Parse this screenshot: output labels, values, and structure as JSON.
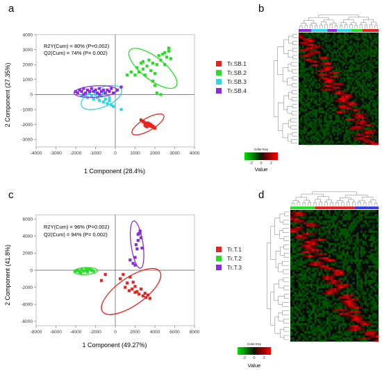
{
  "panels": {
    "a": {
      "letter": "a",
      "stats": [
        "R2Y(Cum) = 80% (P=0.002)",
        "Q2(Cum) = 74% (P= 0.002)"
      ],
      "xlabel": "1 Component (28.4%)",
      "ylabel": "2 Component (27.35%)",
      "xticks": [
        -4000,
        -3000,
        -2000,
        -1000,
        0,
        1000,
        2000,
        3000,
        4000
      ],
      "yticks": [
        4000,
        3000,
        2000,
        1000,
        0,
        -1000,
        -2000,
        -3000
      ],
      "legend": [
        {
          "label": "Tr.SB.1",
          "color": "#e8231e"
        },
        {
          "label": "Tr.SB.2",
          "color": "#23e023"
        },
        {
          "label": "Tr.SB.3",
          "color": "#28d8e8"
        },
        {
          "label": "Tr.SB.4",
          "color": "#8a2be2"
        }
      ]
    },
    "b": {
      "letter": "b",
      "color_key_title": "Color Key",
      "key_ticks": [
        "-2",
        "0",
        "2"
      ],
      "key_label": "Value"
    },
    "c": {
      "letter": "c",
      "stats": [
        "R2Y(Cum) = 96% (P=0.002)",
        "Q2(Cum) = 94% (P= 0.002)"
      ],
      "xlabel": "1 Component (49.27%)",
      "ylabel": "2 Component (41.8%)",
      "xticks": [
        -8000,
        -6000,
        -4000,
        -2000,
        0,
        2000,
        4000,
        6000,
        8000
      ],
      "yticks": [
        6000,
        4000,
        2000,
        0,
        -2000,
        -4000,
        -6000
      ],
      "legend": [
        {
          "label": "Tr.T.1",
          "color": "#e8231e"
        },
        {
          "label": "Tr.T.2",
          "color": "#23e023"
        },
        {
          "label": "Tr.T.3",
          "color": "#8a2be2"
        }
      ]
    },
    "d": {
      "letter": "d",
      "color_key_title": "Color Key",
      "key_ticks": [
        "-2",
        "0",
        "2"
      ],
      "key_label": "Value"
    }
  },
  "chart_data": [
    {
      "type": "scatter",
      "title": "",
      "xlabel": "1 Component (28.4%)",
      "ylabel": "2 Component (27.35%)",
      "xlim": [
        -4000,
        4000
      ],
      "ylim": [
        -3500,
        4000
      ],
      "grid": false,
      "legend_position": "right",
      "series": [
        {
          "name": "Tr.SB.1",
          "color": "#e8231e",
          "ellipse": {
            "cx": 1650,
            "cy": -2000,
            "rx": 1050,
            "ry": 360,
            "angle_deg": -30
          },
          "points": [
            [
              1300,
              -1700
            ],
            [
              1400,
              -1800
            ],
            [
              1500,
              -1900
            ],
            [
              1550,
              -1950
            ],
            [
              1600,
              -2000
            ],
            [
              1650,
              -1900
            ],
            [
              1700,
              -2050
            ],
            [
              1750,
              -2100
            ],
            [
              1800,
              -2000
            ],
            [
              1850,
              -2150
            ],
            [
              1900,
              -2100
            ],
            [
              1950,
              -2200
            ],
            [
              1500,
              -2050
            ],
            [
              1600,
              -2150
            ],
            [
              1700,
              -1950
            ],
            [
              1450,
              -1850
            ],
            [
              2000,
              -2250
            ],
            [
              1550,
              -2100
            ]
          ]
        },
        {
          "name": "Tr.SB.2",
          "color": "#23e023",
          "ellipse": {
            "cx": 1900,
            "cy": 1750,
            "rx": 1700,
            "ry": 650,
            "angle_deg": 38
          },
          "points": [
            [
              600,
              1300
            ],
            [
              800,
              1500
            ],
            [
              1000,
              1300
            ],
            [
              1100,
              1800
            ],
            [
              1200,
              1500
            ],
            [
              1300,
              2100
            ],
            [
              1400,
              1700
            ],
            [
              1500,
              1300
            ],
            [
              1600,
              1900
            ],
            [
              1700,
              2300
            ],
            [
              1800,
              1600
            ],
            [
              1900,
              2100
            ],
            [
              2000,
              1400
            ],
            [
              2100,
              2000
            ],
            [
              2200,
              2600
            ],
            [
              2300,
              2300
            ],
            [
              2400,
              2700
            ],
            [
              2500,
              2000
            ],
            [
              2600,
              2500
            ],
            [
              2700,
              2900
            ],
            [
              2800,
              2400
            ],
            [
              2700,
              3100
            ],
            [
              2500,
              2800
            ],
            [
              1900,
              900
            ],
            [
              2000,
              600
            ],
            [
              2100,
              100
            ],
            [
              2300,
              0
            ],
            [
              1400,
              2200
            ]
          ]
        },
        {
          "name": "Tr.SB.3",
          "color": "#28d8e8",
          "ellipse": {
            "cx": -700,
            "cy": -200,
            "rx": 1250,
            "ry": 560,
            "angle_deg": -22
          },
          "points": [
            [
              -1700,
              -100
            ],
            [
              -1500,
              0
            ],
            [
              -1400,
              -200
            ],
            [
              -1300,
              100
            ],
            [
              -1200,
              -100
            ],
            [
              -1100,
              -300
            ],
            [
              -1000,
              0
            ],
            [
              -900,
              -200
            ],
            [
              -800,
              -400
            ],
            [
              -700,
              -100
            ],
            [
              -600,
              -500
            ],
            [
              -500,
              -300
            ],
            [
              -400,
              -600
            ],
            [
              -300,
              -400
            ],
            [
              -200,
              -700
            ],
            [
              -100,
              -800
            ],
            [
              300,
              -1000
            ],
            [
              -1000,
              200
            ],
            [
              -600,
              100
            ],
            [
              -300,
              -200
            ]
          ]
        },
        {
          "name": "Tr.SB.4",
          "color": "#8a2be2",
          "ellipse": {
            "cx": -1000,
            "cy": 200,
            "rx": 1250,
            "ry": 330,
            "angle_deg": -4
          },
          "points": [
            [
              -2000,
              200
            ],
            [
              -1900,
              100
            ],
            [
              -1800,
              300
            ],
            [
              -1700,
              200
            ],
            [
              -1600,
              400
            ],
            [
              -1500,
              100
            ],
            [
              -1400,
              300
            ],
            [
              -1300,
              200
            ],
            [
              -1200,
              400
            ],
            [
              -1100,
              200
            ],
            [
              -1000,
              300
            ],
            [
              -900,
              100
            ],
            [
              -800,
              400
            ],
            [
              -700,
              200
            ],
            [
              -600,
              300
            ],
            [
              -500,
              100
            ],
            [
              -400,
              300
            ],
            [
              -300,
              200
            ],
            [
              -200,
              400
            ],
            [
              -100,
              100
            ],
            [
              100,
              300
            ],
            [
              300,
              500
            ],
            [
              -1600,
              0
            ],
            [
              -800,
              0
            ]
          ]
        }
      ]
    },
    {
      "type": "heatmap",
      "title": "",
      "color_key": {
        "title": "Color Key",
        "label": "Value",
        "range": [
          -2,
          2
        ],
        "colors": [
          "#1ad11a",
          "#000000",
          "#e01010"
        ]
      },
      "column_groups": [
        "Tr.SB.4",
        "Tr.SB.3",
        "Tr.SB.4",
        "Tr.SB.3",
        "Tr.SB.2",
        "Tr.SB.1"
      ]
    },
    {
      "type": "scatter",
      "title": "",
      "xlabel": "1 Component (49.27%)",
      "ylabel": "2 Component (41.8%)",
      "xlim": [
        -8000,
        8000
      ],
      "ylim": [
        -6500,
        6500
      ],
      "grid": false,
      "legend_position": "right",
      "series": [
        {
          "name": "Tr.T.1",
          "color": "#e8231e",
          "ellipse": {
            "cx": 1600,
            "cy": -2500,
            "rx": 3800,
            "ry": 1500,
            "angle_deg": -35
          },
          "points": [
            [
              -1400,
              -1200
            ],
            [
              -1000,
              -500
            ],
            [
              500,
              -1000
            ],
            [
              800,
              -500
            ],
            [
              1000,
              -2000
            ],
            [
              1200,
              -1500
            ],
            [
              1500,
              -800
            ],
            [
              1700,
              -2200
            ],
            [
              1800,
              -1400
            ],
            [
              2000,
              -1900
            ],
            [
              2200,
              -2500
            ],
            [
              2400,
              -2800
            ],
            [
              2600,
              -2200
            ],
            [
              2800,
              -3000
            ],
            [
              3000,
              -2700
            ],
            [
              3100,
              -3200
            ],
            [
              3300,
              -2900
            ],
            [
              3500,
              -3300
            ],
            [
              2000,
              -2600
            ],
            [
              1400,
              -2400
            ]
          ]
        },
        {
          "name": "Tr.T.2",
          "color": "#23e023",
          "ellipse": {
            "cx": -3000,
            "cy": -100,
            "rx": 1300,
            "ry": 380,
            "angle_deg": -3
          },
          "points": [
            [
              -4000,
              -100
            ],
            [
              -3800,
              0
            ],
            [
              -3600,
              -200
            ],
            [
              -3400,
              100
            ],
            [
              -3200,
              -100
            ],
            [
              -3000,
              0
            ],
            [
              -2800,
              -200
            ],
            [
              -2600,
              100
            ],
            [
              -2400,
              0
            ],
            [
              -2200,
              -100
            ],
            [
              -3500,
              -300
            ],
            [
              -2900,
              200
            ]
          ]
        },
        {
          "name": "Tr.T.3",
          "color": "#8a2be2",
          "ellipse": {
            "cx": 2200,
            "cy": 3000,
            "rx": 2600,
            "ry": 650,
            "angle_deg": 82
          },
          "points": [
            [
              1500,
              1200
            ],
            [
              1800,
              800
            ],
            [
              2000,
              1500
            ],
            [
              2200,
              2500
            ],
            [
              2300,
              3500
            ],
            [
              2400,
              4300
            ],
            [
              2500,
              4600
            ],
            [
              2300,
              4200
            ],
            [
              2600,
              3800
            ],
            [
              2100,
              3000
            ],
            [
              2700,
              2600
            ],
            [
              2000,
              600
            ],
            [
              2500,
              4500
            ]
          ]
        }
      ]
    },
    {
      "type": "heatmap",
      "title": "",
      "color_key": {
        "title": "Color Key",
        "label": "Value",
        "range": [
          -2,
          2
        ],
        "colors": [
          "#1ad11a",
          "#000000",
          "#e01010"
        ]
      },
      "column_groups": [
        "Tr.T.2",
        "Tr.T.1",
        "Tr.T.3"
      ]
    }
  ]
}
